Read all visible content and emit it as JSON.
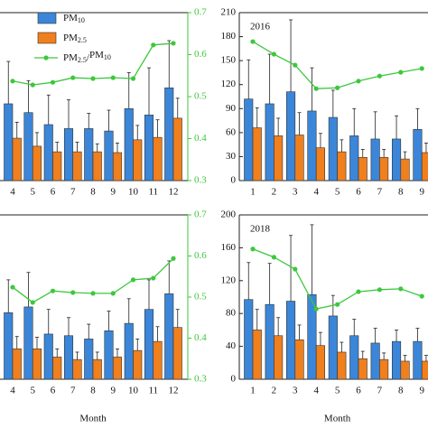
{
  "chart_data": [
    {
      "type": "bar",
      "categories": [
        "4",
        "5",
        "6",
        "7",
        "8",
        "9",
        "10",
        "11",
        "12"
      ],
      "ylim": [
        0,
        210
      ],
      "y2lim": [
        0.3,
        0.7
      ],
      "y2ticks": [
        0.3,
        0.4,
        0.5,
        0.6,
        0.7
      ],
      "legend": "top-left",
      "series": [
        {
          "name": "PM10",
          "color": "#3b86d8",
          "values": [
            96,
            85,
            70,
            65,
            65,
            62,
            90,
            82,
            116
          ],
          "errors": [
            53,
            40,
            37,
            36,
            19,
            26,
            45,
            59,
            59
          ]
        },
        {
          "name": "PM2.5",
          "color": "#f07f1e",
          "values": [
            53,
            43,
            36,
            36,
            36,
            35,
            51,
            54,
            78
          ],
          "errors": [
            20,
            17,
            12,
            12,
            10,
            12,
            18,
            22,
            25
          ]
        },
        {
          "name": "PM2.5/PM10",
          "color": "#3cc83c",
          "axis": "y2",
          "values": [
            0.537,
            0.528,
            0.534,
            0.545,
            0.543,
            0.545,
            0.543,
            0.623,
            0.627
          ]
        }
      ]
    },
    {
      "type": "bar",
      "title": "2016",
      "categories": [
        "1",
        "2",
        "3",
        "4",
        "5",
        "6",
        "7",
        "8",
        "9"
      ],
      "ylim": [
        0,
        210
      ],
      "yticks": [
        0,
        30,
        60,
        90,
        120,
        150,
        180,
        210
      ],
      "y2lim": [
        0.3,
        0.7
      ],
      "series": [
        {
          "color": "#3b86d8",
          "values": [
            102,
            96,
            111,
            87,
            79,
            56,
            52,
            52,
            64
          ],
          "errors": [
            49,
            62,
            90,
            54,
            34,
            34,
            34,
            29,
            26
          ]
        },
        {
          "color": "#f07f1e",
          "values": [
            66,
            56,
            57,
            41,
            36,
            29,
            29,
            27,
            35
          ],
          "errors": [
            25,
            22,
            28,
            18,
            15,
            10,
            10,
            9,
            12
          ]
        },
        {
          "color": "#3cc83c",
          "axis": "y2",
          "values": [
            0.631,
            0.601,
            0.575,
            0.519,
            0.521,
            0.537,
            0.549,
            0.558,
            0.567
          ]
        }
      ]
    },
    {
      "type": "bar",
      "categories": [
        "4",
        "5",
        "6",
        "7",
        "8",
        "9",
        "10",
        "11",
        "12"
      ],
      "xlabel": "Month",
      "ylim": [
        0,
        200
      ],
      "y2lim": [
        0.3,
        0.7
      ],
      "y2ticks": [
        0.3,
        0.4,
        0.5,
        0.6,
        0.7
      ],
      "series": [
        {
          "color": "#3b86d8",
          "values": [
            81,
            88,
            55,
            53,
            49,
            59,
            68,
            85,
            104
          ],
          "errors": [
            40,
            42,
            30,
            22,
            18,
            24,
            30,
            36,
            40
          ]
        },
        {
          "color": "#f07f1e",
          "values": [
            37,
            37,
            27,
            24,
            24,
            27,
            35,
            46,
            63
          ],
          "errors": [
            15,
            14,
            10,
            9,
            9,
            10,
            14,
            18,
            22
          ]
        },
        {
          "color": "#3cc83c",
          "axis": "y2",
          "values": [
            0.524,
            0.487,
            0.515,
            0.511,
            0.509,
            0.509,
            0.542,
            0.546,
            0.594
          ]
        }
      ]
    },
    {
      "type": "bar",
      "title": "2018",
      "categories": [
        "1",
        "2",
        "3",
        "4",
        "5",
        "6",
        "7",
        "8",
        "9"
      ],
      "xlabel": "Month",
      "ylim": [
        0,
        200
      ],
      "yticks": [
        0,
        40,
        80,
        120,
        160,
        200
      ],
      "y2lim": [
        0.3,
        0.7
      ],
      "series": [
        {
          "color": "#3b86d8",
          "values": [
            97,
            91,
            95,
            103,
            77,
            53,
            44,
            46,
            46
          ],
          "errors": [
            45,
            50,
            80,
            85,
            25,
            20,
            18,
            14,
            16
          ]
        },
        {
          "color": "#f07f1e",
          "values": [
            60,
            53,
            48,
            41,
            33,
            25,
            24,
            22,
            22
          ],
          "errors": [
            25,
            22,
            18,
            16,
            12,
            9,
            8,
            7,
            7
          ]
        },
        {
          "color": "#3cc83c",
          "axis": "y2",
          "values": [
            0.617,
            0.597,
            0.568,
            0.471,
            0.482,
            0.513,
            0.518,
            0.52,
            0.502
          ]
        }
      ]
    }
  ]
}
